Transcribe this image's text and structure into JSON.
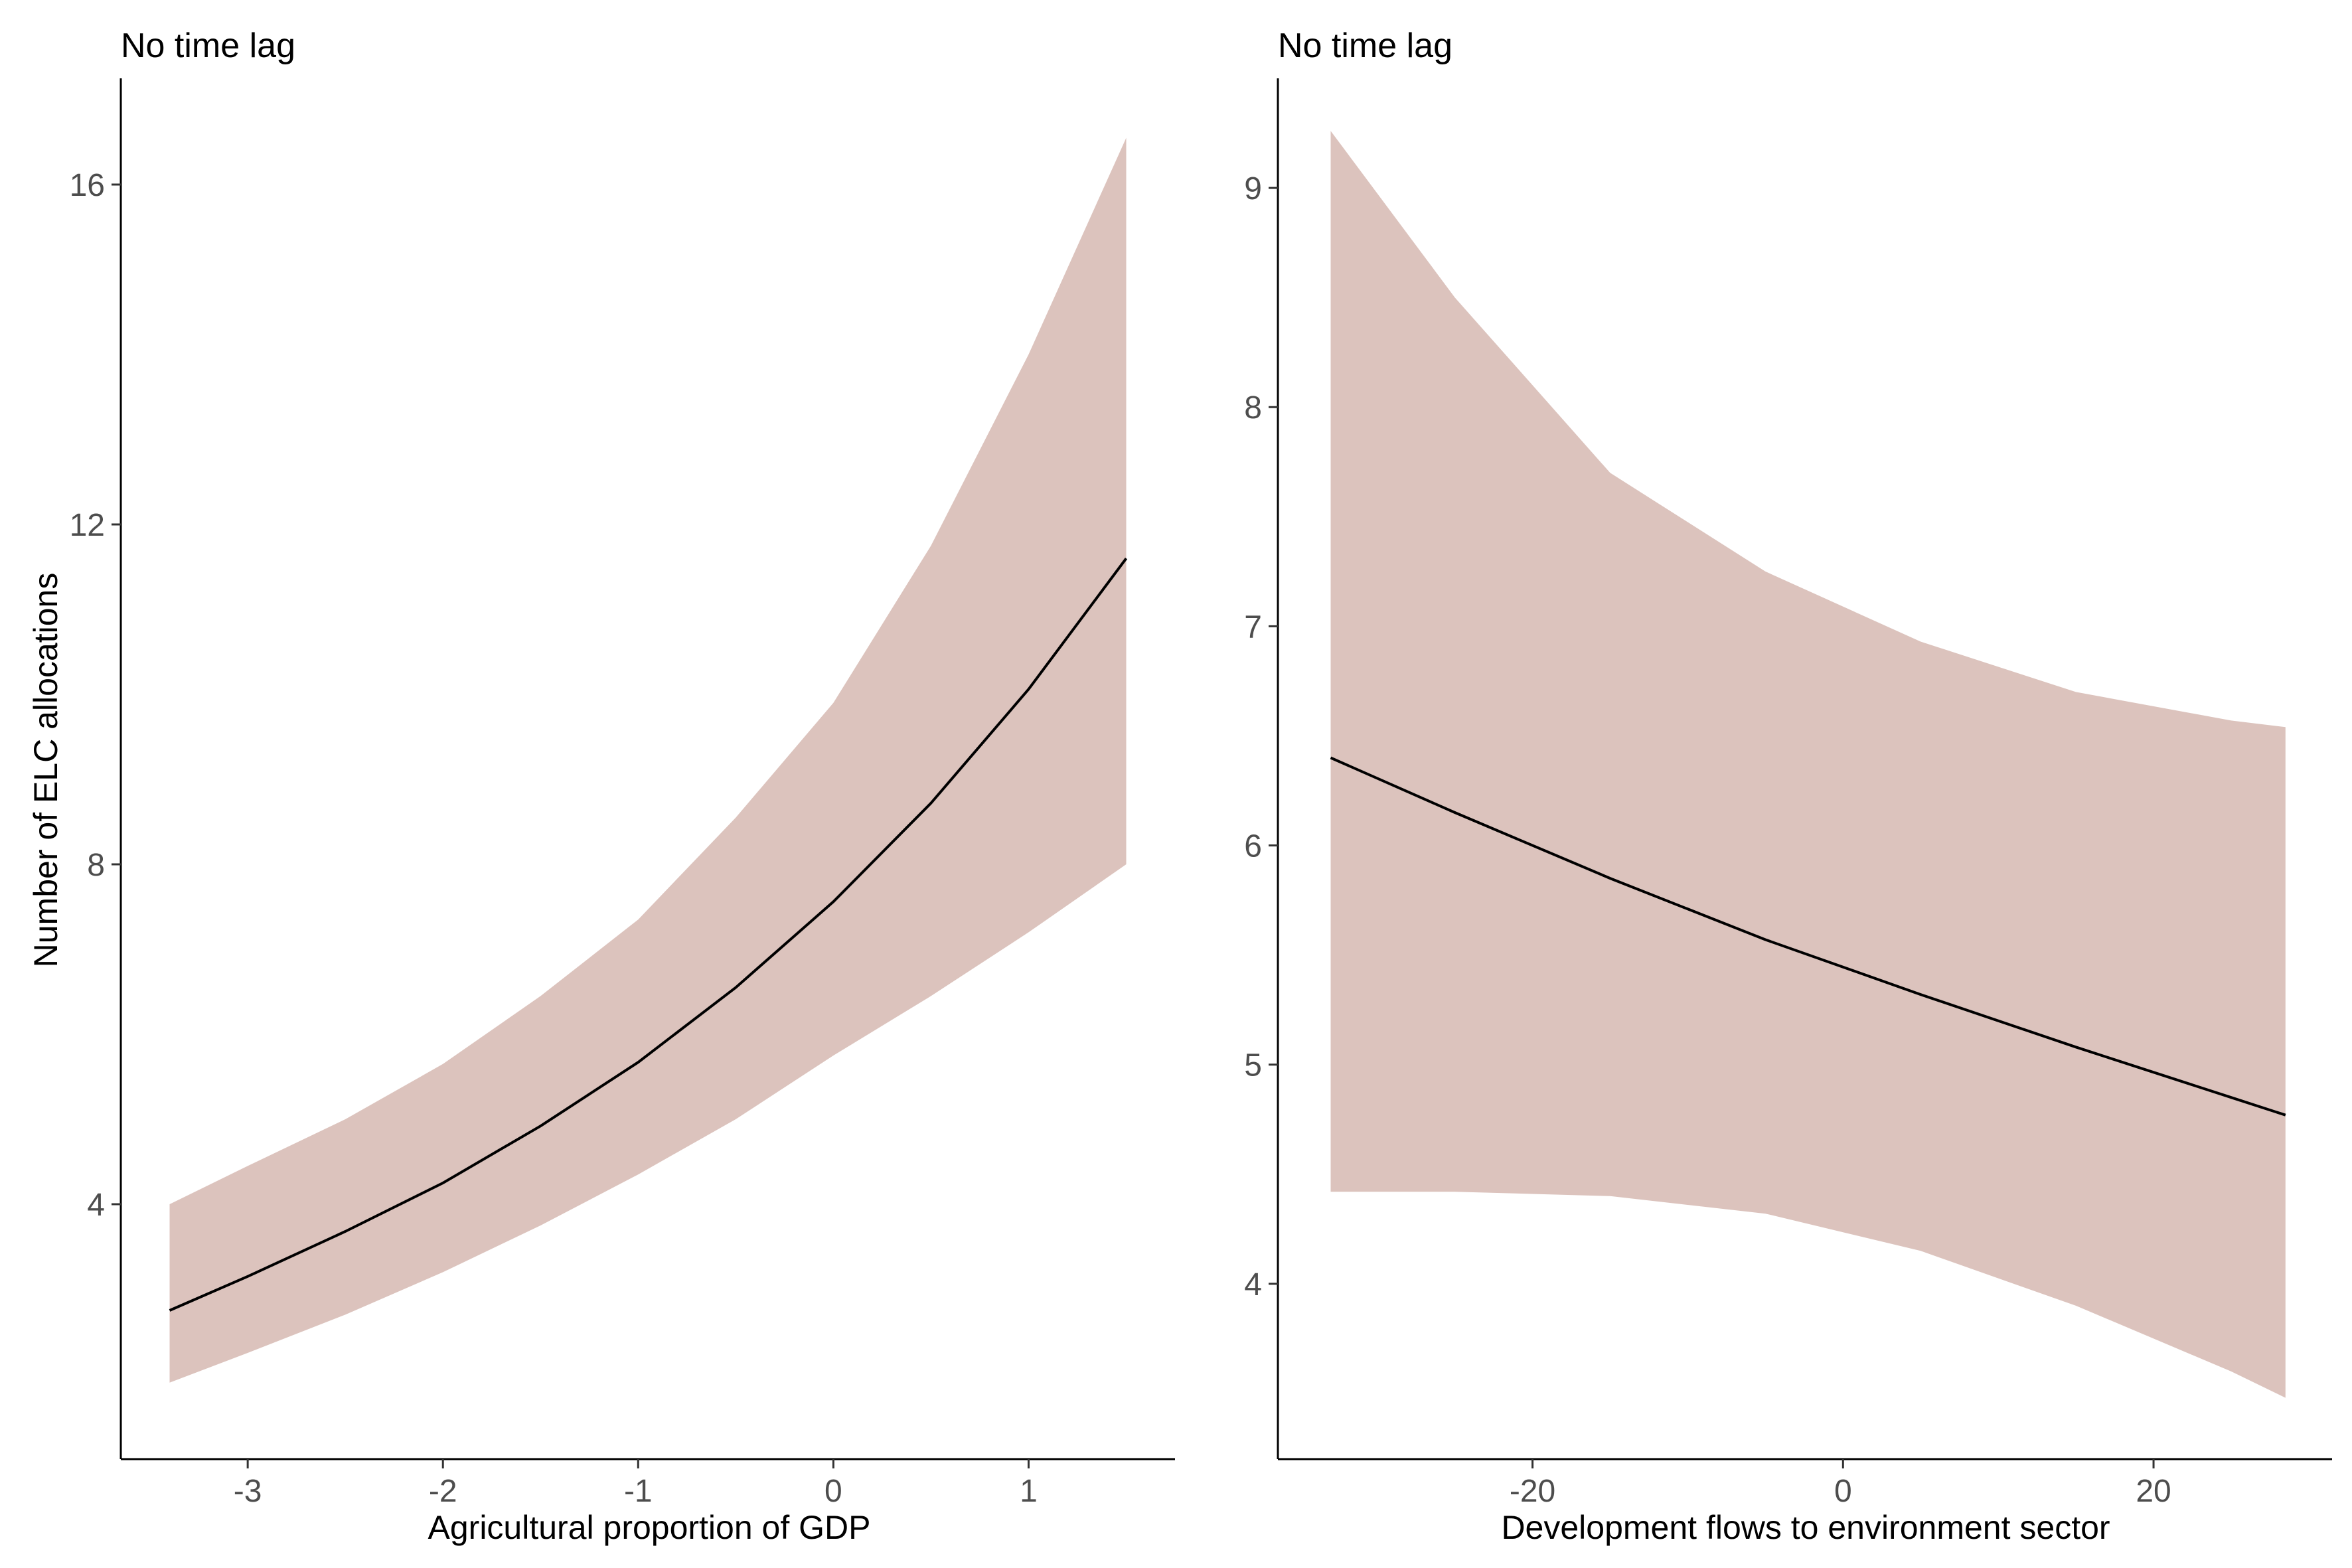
{
  "colors": {
    "ribbon": "#dcc3bd",
    "line": "#000000",
    "axis": "#000000",
    "tick_text": "#4d4d4d"
  },
  "chart_data": [
    {
      "type": "line",
      "title": "No time lag",
      "xlabel": "Agricultural proportion of GDP",
      "ylabel": "Number of ELC allocations",
      "xlim": [
        -3.65,
        1.75
      ],
      "ylim": [
        1.0,
        17.25
      ],
      "xticks": [
        -3,
        -2,
        -1,
        0,
        1
      ],
      "yticks": [
        4,
        8,
        12,
        16
      ],
      "grid": false,
      "legend": "none",
      "series": [
        {
          "type": "line",
          "x": [
            -3.4,
            -3.0,
            -2.5,
            -2.0,
            -1.5,
            -1.0,
            -0.5,
            0.0,
            0.5,
            1.0,
            1.5
          ],
          "y": [
            2.75,
            3.15,
            3.68,
            4.25,
            4.92,
            5.67,
            6.55,
            7.56,
            8.72,
            10.06,
            11.6
          ]
        },
        {
          "type": "ribbon",
          "x": [
            -3.4,
            -3.0,
            -2.5,
            -2.0,
            -1.5,
            -1.0,
            -0.5,
            0.0,
            0.5,
            1.0,
            1.5
          ],
          "lower": [
            1.9,
            2.25,
            2.7,
            3.2,
            3.75,
            4.35,
            5.0,
            5.75,
            6.45,
            7.2,
            8.0
          ],
          "upper": [
            4.0,
            4.45,
            5.0,
            5.65,
            6.45,
            7.35,
            8.55,
            9.9,
            11.75,
            14.0,
            16.55
          ]
        }
      ]
    },
    {
      "type": "line",
      "title": "No time lag",
      "xlabel": "Development flows to environment sector",
      "ylabel": "",
      "xlim": [
        -36.4,
        31.5
      ],
      "ylim": [
        3.2,
        9.5
      ],
      "xticks": [
        -20,
        0,
        20
      ],
      "yticks": [
        4,
        5,
        6,
        7,
        8,
        9
      ],
      "grid": false,
      "legend": "none",
      "series": [
        {
          "type": "line",
          "x": [
            -33,
            -25,
            -15,
            -5,
            5,
            15,
            25,
            28.5
          ],
          "y": [
            6.4,
            6.15,
            5.85,
            5.57,
            5.32,
            5.08,
            4.85,
            4.77
          ]
        },
        {
          "type": "ribbon",
          "x": [
            -33,
            -25,
            -15,
            -5,
            5,
            15,
            25,
            28.5
          ],
          "lower": [
            4.42,
            4.42,
            4.4,
            4.32,
            4.15,
            3.9,
            3.6,
            3.48
          ],
          "upper": [
            9.26,
            8.5,
            7.7,
            7.25,
            6.93,
            6.7,
            6.57,
            6.54
          ]
        }
      ]
    }
  ]
}
